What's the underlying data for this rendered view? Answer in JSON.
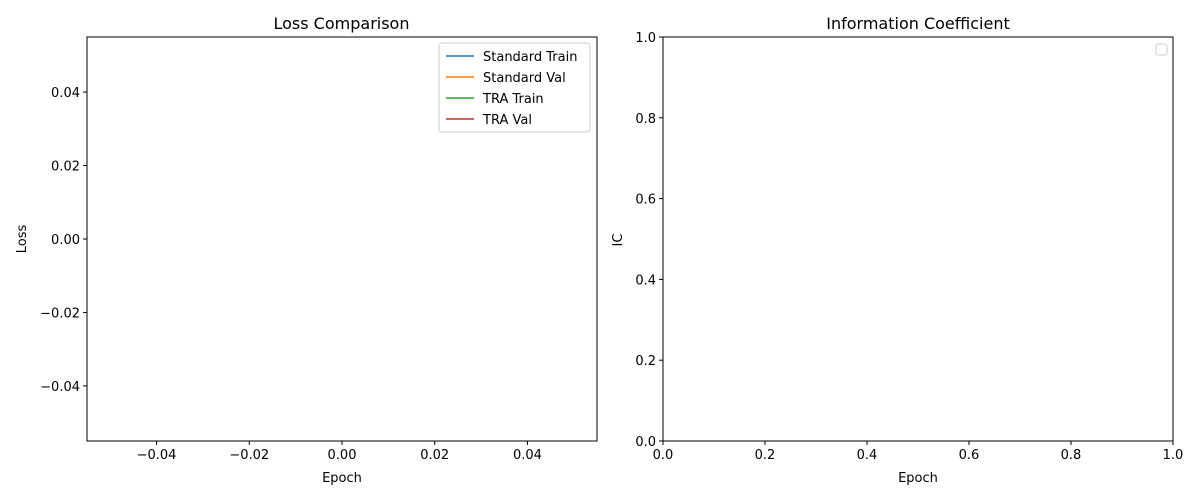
{
  "chart_data": [
    {
      "type": "line",
      "title": "Loss Comparison",
      "xlabel": "Epoch",
      "ylabel": "Loss",
      "xlim": [
        -0.055,
        0.055
      ],
      "ylim": [
        -0.055,
        0.055
      ],
      "xticks": [
        -0.04,
        -0.02,
        0.0,
        0.02,
        0.04
      ],
      "xtick_labels": [
        "−0.04",
        "−0.02",
        "0.00",
        "0.02",
        "0.04"
      ],
      "yticks": [
        -0.04,
        -0.02,
        0.0,
        0.02,
        0.04
      ],
      "ytick_labels": [
        "−0.04",
        "−0.02",
        "0.00",
        "0.02",
        "0.04"
      ],
      "grid": false,
      "legend_position": "top-right",
      "series": [
        {
          "name": "Standard Train",
          "color": "#1f77b4",
          "x": [],
          "y": []
        },
        {
          "name": "Standard Val",
          "color": "#ff7f0e",
          "x": [],
          "y": []
        },
        {
          "name": "TRA Train",
          "color": "#2ca02c",
          "x": [],
          "y": []
        },
        {
          "name": "TRA Val",
          "color": "#d62728",
          "x": [],
          "y": []
        }
      ]
    },
    {
      "type": "line",
      "title": "Information Coefficient",
      "xlabel": "Epoch",
      "ylabel": "IC",
      "xlim": [
        0.0,
        1.0
      ],
      "ylim": [
        0.0,
        1.0
      ],
      "xticks": [
        0.0,
        0.2,
        0.4,
        0.6,
        0.8,
        1.0
      ],
      "xtick_labels": [
        "0.0",
        "0.2",
        "0.4",
        "0.6",
        "0.8",
        "1.0"
      ],
      "yticks": [
        0.0,
        0.2,
        0.4,
        0.6,
        0.8,
        1.0
      ],
      "ytick_labels": [
        "0.0",
        "0.2",
        "0.4",
        "0.6",
        "0.8",
        "1.0"
      ],
      "grid": false,
      "legend_position": "top-right",
      "series": []
    }
  ]
}
